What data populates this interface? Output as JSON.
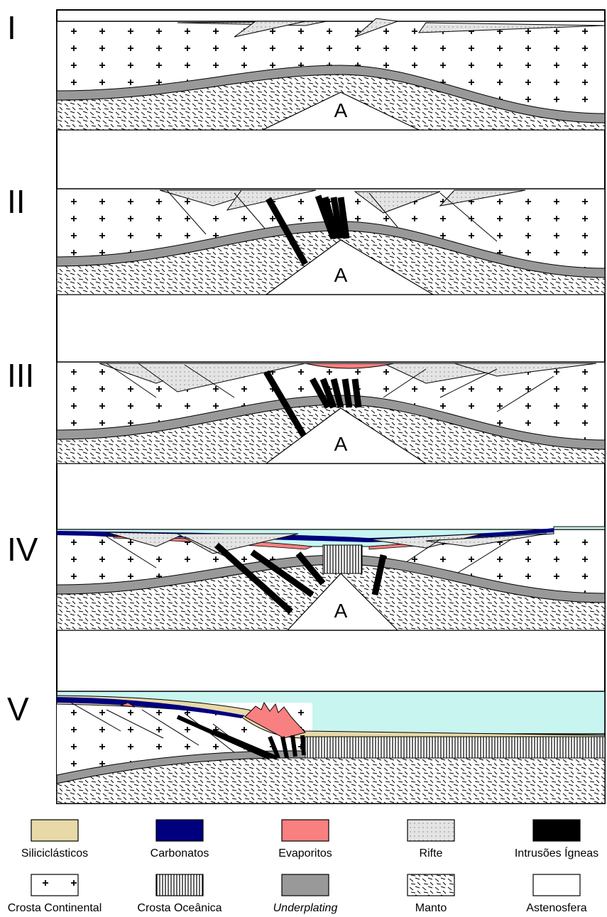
{
  "stages": [
    {
      "label": "I",
      "asthenosphere": "A"
    },
    {
      "label": "II",
      "asthenosphere": "A"
    },
    {
      "label": "III",
      "asthenosphere": "A"
    },
    {
      "label": "IV",
      "asthenosphere": "A"
    },
    {
      "label": "V"
    }
  ],
  "legend": [
    {
      "label": "Siliciclásticos"
    },
    {
      "label": "Carbonatos"
    },
    {
      "label": "Evaporitos"
    },
    {
      "label": "Rifte"
    },
    {
      "label": "Intrusões Ígneas"
    },
    {
      "label": "Crosta Continental"
    },
    {
      "label": "Crosta Oceânica"
    },
    {
      "label": "Underplating"
    },
    {
      "label": "Manto"
    },
    {
      "label": "Astenosfera"
    }
  ]
}
